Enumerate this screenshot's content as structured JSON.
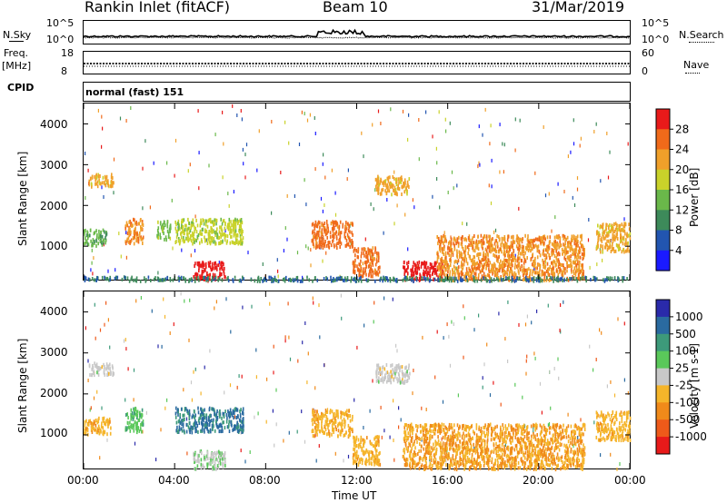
{
  "header": {
    "station": "Rankin Inlet (fitACF)",
    "beam": "Beam 10",
    "date": "31/Mar/2019"
  },
  "strip_labels": {
    "nsky": "N.Sky",
    "nsky_top": "10^5",
    "nsky_bottom": "10^0",
    "nsearch": "N.Search",
    "nsearch_top": "10^5",
    "nsearch_bottom": "10^0",
    "freq": "Freq.",
    "freq_unit": "[MHz]",
    "freq_top": "18",
    "freq_bottom": "8",
    "nave": "Nave",
    "nave_top": "60",
    "nave_bottom": "0",
    "cpid": "CPID",
    "cpid_value": "normal (fast) 151"
  },
  "colors": {
    "nsky": "#000000",
    "nsearch": "#000000",
    "freq": "#000000",
    "nave": "#000000"
  },
  "chart_data": [
    {
      "type": "heatmap",
      "title": "",
      "ylabel": "Slant Range [km]",
      "xlabel": "",
      "x_range": [
        "00:00",
        "00:00"
      ],
      "ylim": [
        180,
        4500
      ],
      "yticks": [
        "1000",
        "2000",
        "3000",
        "4000"
      ],
      "colorbar": {
        "label": "Power [dB]",
        "ticks": [
          "4",
          "8",
          "12",
          "16",
          "20",
          "24",
          "28"
        ],
        "range": [
          0,
          30
        ],
        "colors": [
          "#1a1aff",
          "#2255b0",
          "#3d8a5a",
          "#6ab84a",
          "#c9d22a",
          "#f0a02a",
          "#f06a1a",
          "#e81a1a"
        ]
      },
      "echo_regions": [
        {
          "t": [
            0.2,
            1.3
          ],
          "r": [
            2500,
            2800
          ],
          "value": 20
        },
        {
          "t": [
            0.0,
            1.0
          ],
          "r": [
            1050,
            1450
          ],
          "value": 12
        },
        {
          "t": [
            1.8,
            2.6
          ],
          "r": [
            1100,
            1700
          ],
          "value": 22
        },
        {
          "t": [
            3.2,
            3.8
          ],
          "r": [
            1200,
            1650
          ],
          "value": 14
        },
        {
          "t": [
            4.0,
            7.0
          ],
          "r": [
            1100,
            1700
          ],
          "value": 16
        },
        {
          "t": [
            4.8,
            6.2
          ],
          "r": [
            200,
            650
          ],
          "value": 28
        },
        {
          "t": [
            10.0,
            11.8
          ],
          "r": [
            1000,
            1650
          ],
          "value": 24
        },
        {
          "t": [
            11.8,
            13.0
          ],
          "r": [
            300,
            1000
          ],
          "value": 24
        },
        {
          "t": [
            12.8,
            14.3
          ],
          "r": [
            2300,
            2750
          ],
          "value": 20
        },
        {
          "t": [
            14.0,
            15.8
          ],
          "r": [
            200,
            650
          ],
          "value": 30
        },
        {
          "t": [
            15.5,
            22.0
          ],
          "r": [
            200,
            1300
          ],
          "value": 22
        },
        {
          "t": [
            22.5,
            24.0
          ],
          "r": [
            900,
            1600
          ],
          "value": 20
        },
        {
          "t": [
            0.0,
            24.0
          ],
          "r": [
            180,
            280
          ],
          "value": 8
        }
      ]
    },
    {
      "type": "heatmap",
      "title": "",
      "ylabel": "Slant Range [km]",
      "xlabel": "Time UT",
      "x_range": [
        "00:00",
        "00:00"
      ],
      "xticks": [
        "00:00",
        "04:00",
        "08:00",
        "12:00",
        "16:00",
        "20:00",
        "00:00"
      ],
      "ylim": [
        180,
        4500
      ],
      "yticks": [
        "1000",
        "2000",
        "3000",
        "4000"
      ],
      "colorbar": {
        "label": "Velocity [m s-1]",
        "ticks": [
          "1000",
          "500",
          "100",
          "25",
          "-25",
          "-100",
          "-500",
          "-1000"
        ],
        "range": [
          -1200,
          1200
        ],
        "colors": [
          "#2a2aaa",
          "#2a6aa0",
          "#3d9a7a",
          "#5ac85a",
          "#c8c8c8",
          "#f5b52a",
          "#f08a1a",
          "#ee5a1a",
          "#e81a1a"
        ]
      },
      "echo_regions": [
        {
          "t": [
            0.2,
            1.3
          ],
          "r": [
            2500,
            2800
          ],
          "value": 0
        },
        {
          "t": [
            0.0,
            1.2
          ],
          "r": [
            1050,
            1450
          ],
          "value": -300
        },
        {
          "t": [
            1.8,
            2.6
          ],
          "r": [
            1100,
            1700
          ],
          "value": 300
        },
        {
          "t": [
            4.0,
            7.0
          ],
          "r": [
            1100,
            1700
          ],
          "value": 700
        },
        {
          "t": [
            4.8,
            6.2
          ],
          "r": [
            200,
            650
          ],
          "value": 80
        },
        {
          "t": [
            10.0,
            11.8
          ],
          "r": [
            1000,
            1650
          ],
          "value": -300
        },
        {
          "t": [
            11.8,
            13.0
          ],
          "r": [
            300,
            1000
          ],
          "value": -300
        },
        {
          "t": [
            12.8,
            14.3
          ],
          "r": [
            2300,
            2750
          ],
          "value": 0
        },
        {
          "t": [
            14.0,
            22.0
          ],
          "r": [
            200,
            1300
          ],
          "value": -400
        },
        {
          "t": [
            22.5,
            24.0
          ],
          "r": [
            900,
            1600
          ],
          "value": -300
        }
      ]
    }
  ]
}
